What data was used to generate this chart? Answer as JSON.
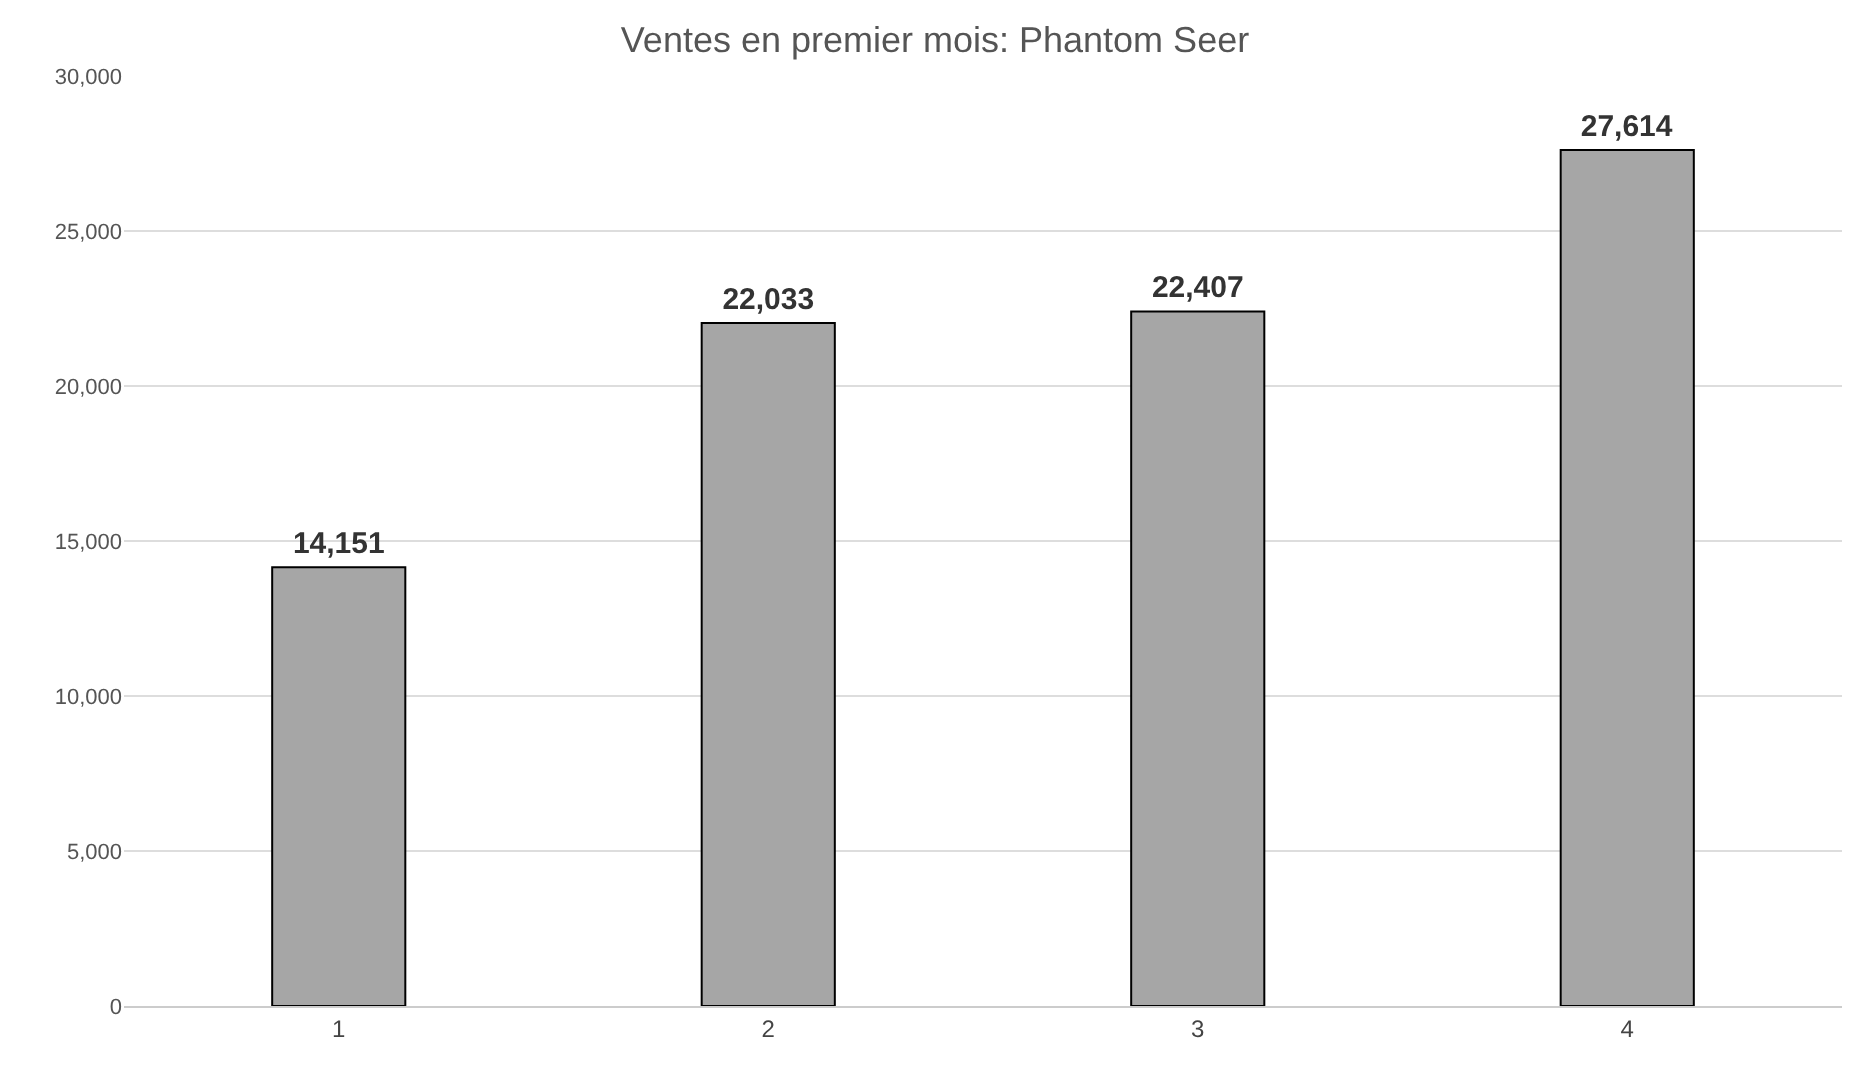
{
  "chart_data": {
    "type": "bar",
    "title": "Ventes en premier mois: Phantom Seer",
    "categories": [
      "1",
      "2",
      "3",
      "4"
    ],
    "values": [
      14151,
      22033,
      22407,
      27614
    ],
    "color": "#a6a6a6",
    "value_labels": [
      "14,151",
      "22,033",
      "22,407",
      "27,614"
    ],
    "ylim": [
      0,
      30000
    ],
    "yticks": [
      {
        "value": 0,
        "label": "0"
      },
      {
        "value": 5000,
        "label": "5,000"
      },
      {
        "value": 10000,
        "label": "10,000"
      },
      {
        "value": 15000,
        "label": "15,000"
      },
      {
        "value": 20000,
        "label": "20,000"
      },
      {
        "value": 25000,
        "label": "25,000"
      },
      {
        "value": 30000,
        "label": "30,000"
      }
    ],
    "grid": "y"
  }
}
